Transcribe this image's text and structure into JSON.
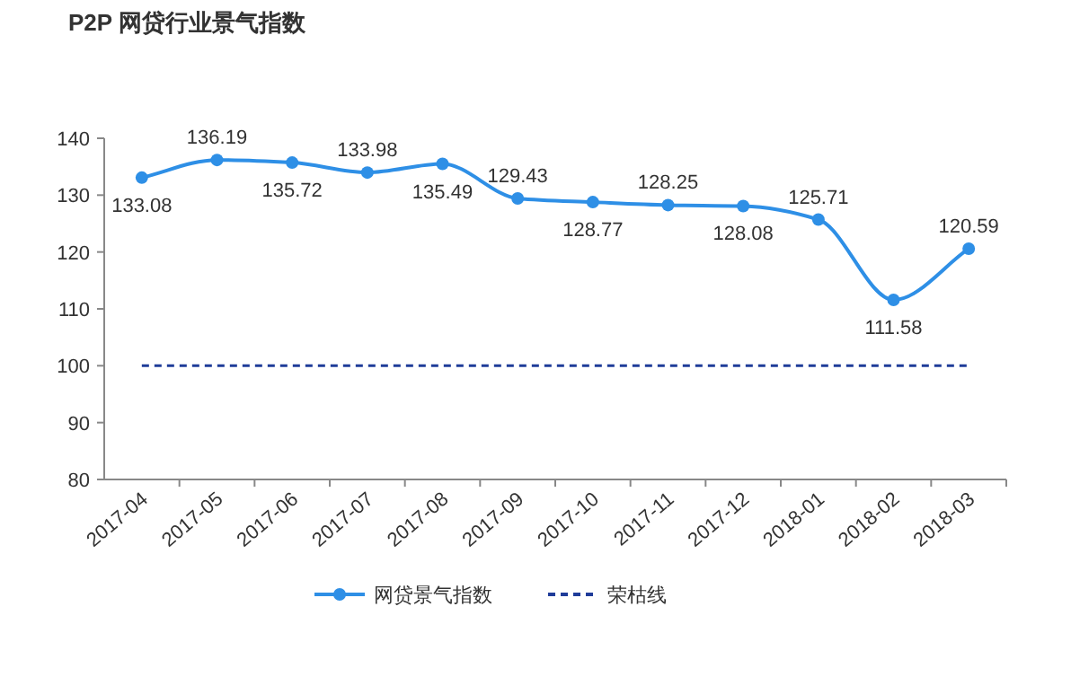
{
  "chart_data": {
    "type": "line",
    "title": "P2P 网贷行业景气指数",
    "categories": [
      "2017-04",
      "2017-05",
      "2017-06",
      "2017-07",
      "2017-08",
      "2017-09",
      "2017-10",
      "2017-11",
      "2017-12",
      "2018-01",
      "2018-02",
      "2018-03"
    ],
    "series": [
      {
        "name": "网贷景气指数",
        "color": "#2e8fe6",
        "values": [
          133.08,
          136.19,
          135.72,
          133.98,
          135.49,
          129.43,
          128.77,
          128.25,
          128.08,
          125.71,
          111.58,
          120.59
        ]
      }
    ],
    "ylim": [
      80,
      140
    ],
    "yticks": [
      80,
      90,
      100,
      110,
      120,
      130,
      140
    ],
    "ref_lines": [
      {
        "axis": "y",
        "value": 100,
        "label": "荣枯线",
        "color": "#1f3c99",
        "line_style": "dashed"
      }
    ],
    "data_labels": true,
    "marker": "circle",
    "legend": "bottom"
  }
}
